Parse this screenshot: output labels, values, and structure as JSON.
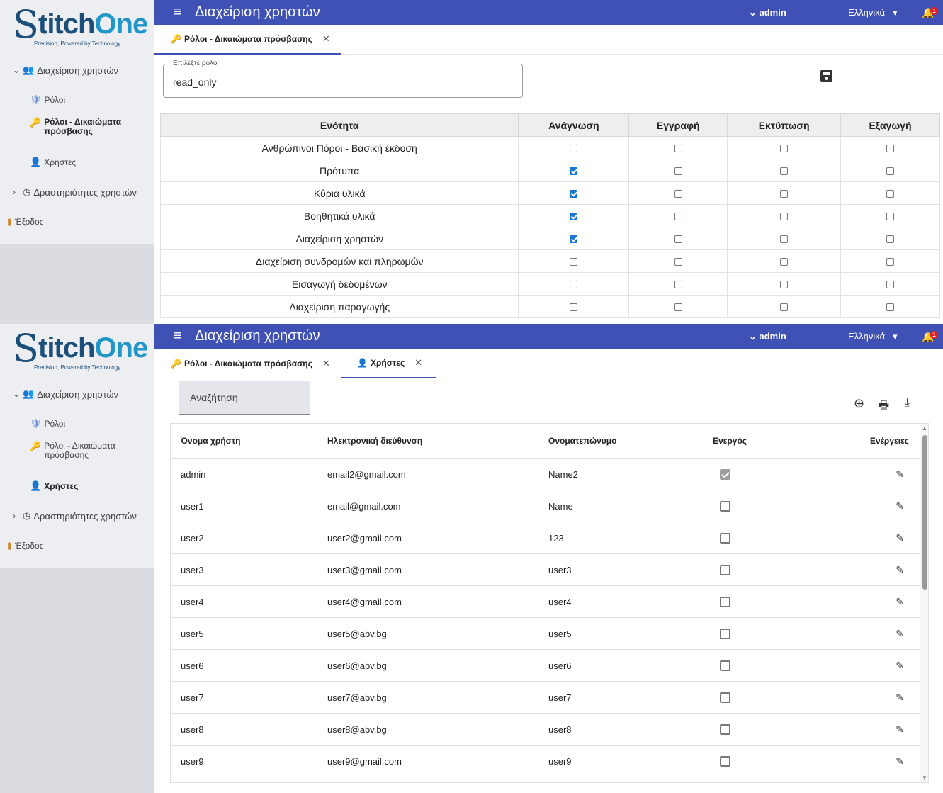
{
  "brand": {
    "logo_s": "S",
    "logo_titch": "titch",
    "logo_one": "One",
    "tagline": "Precision, Powered by Technology"
  },
  "sidebar": {
    "group": "Διαχείριση χρηστών",
    "roles": "Ρόλοι",
    "permissions": "Ρόλοι - Δικαιώματα πρόσβασης",
    "users": "Χρήστες",
    "activities": "Δραστηριότητες χρηστών",
    "logout": "Έξοδος"
  },
  "topbar": {
    "title": "Διαχείριση χρηστών",
    "user": "admin",
    "language": "Ελληνικά",
    "notif_count": "1"
  },
  "tabs": {
    "permissions": "Ρόλοι - Δικαιώματα πρόσβασης",
    "users": "Χρήστες"
  },
  "role_select": {
    "label": "Επιλέξτε ρόλο",
    "value": "read_only"
  },
  "perm_table": {
    "headers": [
      "Ενότητα",
      "Ανάγνωση",
      "Εγγραφή",
      "Εκτύπωση",
      "Εξαγωγή"
    ],
    "rows": [
      {
        "name": "Ανθρώπινοι Πόροι - Βασική έκδοση",
        "perms": [
          false,
          false,
          false,
          false
        ]
      },
      {
        "name": "Πρότυπα",
        "perms": [
          true,
          false,
          false,
          false
        ]
      },
      {
        "name": "Κύρια υλικά",
        "perms": [
          true,
          false,
          false,
          false
        ]
      },
      {
        "name": "Βοηθητικά υλικά",
        "perms": [
          true,
          false,
          false,
          false
        ]
      },
      {
        "name": "Διαχείριση χρηστών",
        "perms": [
          true,
          false,
          false,
          false
        ]
      },
      {
        "name": "Διαχείριση συνδρομών και πληρωμών",
        "perms": [
          false,
          false,
          false,
          false
        ]
      },
      {
        "name": "Εισαγωγή δεδομένων",
        "perms": [
          false,
          false,
          false,
          false
        ]
      },
      {
        "name": "Διαχείριση παραγωγής",
        "perms": [
          false,
          false,
          false,
          false
        ]
      }
    ]
  },
  "search": {
    "placeholder": "Αναζήτηση"
  },
  "users_table": {
    "headers": [
      "Όνομα χρήστη",
      "Ηλεκτρονική διεύθυνση",
      "Ονοματεπώνυμο",
      "Ενεργός",
      "Ενέργειες"
    ],
    "rows": [
      {
        "username": "admin",
        "email": "email2@gmail.com",
        "fullname": "Name2",
        "active": true
      },
      {
        "username": "user1",
        "email": "email@gmail.com",
        "fullname": "Name",
        "active": false
      },
      {
        "username": "user2",
        "email": "user2@gmail.com",
        "fullname": "123",
        "active": false
      },
      {
        "username": "user3",
        "email": "user3@gmail.com",
        "fullname": "user3",
        "active": false
      },
      {
        "username": "user4",
        "email": "user4@gmail.com",
        "fullname": "user4",
        "active": false
      },
      {
        "username": "user5",
        "email": "user5@abv.bg",
        "fullname": "user5",
        "active": false
      },
      {
        "username": "user6",
        "email": "user6@abv.bg",
        "fullname": "user6",
        "active": false
      },
      {
        "username": "user7",
        "email": "user7@abv.bg",
        "fullname": "user7",
        "active": false
      },
      {
        "username": "user8",
        "email": "user8@abv.bg",
        "fullname": "user8",
        "active": false
      },
      {
        "username": "user9",
        "email": "user9@gmail.com",
        "fullname": "user9",
        "active": false
      }
    ]
  }
}
